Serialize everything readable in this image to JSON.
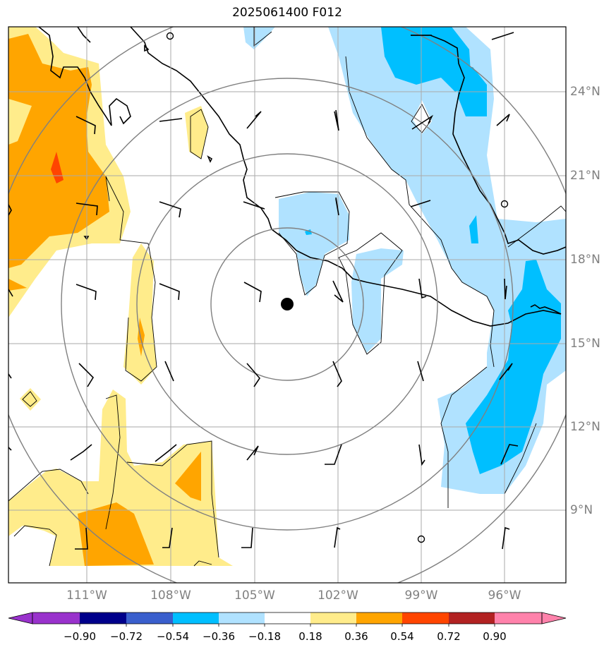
{
  "title": "2025061400 F012",
  "latitude_labels": [
    "24°N",
    "21°N",
    "18°N",
    "15°N",
    "12°N",
    "9°N"
  ],
  "longitude_labels": [
    "111°W",
    "108°W",
    "105°W",
    "102°W",
    "99°W",
    "96°W"
  ],
  "colorbar": {
    "tick_labels": [
      "−0.90",
      "−0.72",
      "−0.54",
      "−0.36",
      "−0.18",
      "0.18",
      "0.36",
      "0.54",
      "0.72",
      "0.90"
    ],
    "colors": [
      "#9932cc",
      "#00008b",
      "#3a5fcd",
      "#00bfff",
      "#b0e2ff",
      "#ffffff",
      "#ffec8b",
      "#ffa500",
      "#ff4500",
      "#b22222",
      "#ff82ab"
    ]
  },
  "map_data": {
    "type": "contour_map",
    "lon_range": [
      -114,
      -94
    ],
    "lat_range": [
      7,
      27
    ],
    "center_marker": {
      "lon": -104.1,
      "lat": 16.3
    },
    "range_rings": 4,
    "wind_barbs": true
  }
}
